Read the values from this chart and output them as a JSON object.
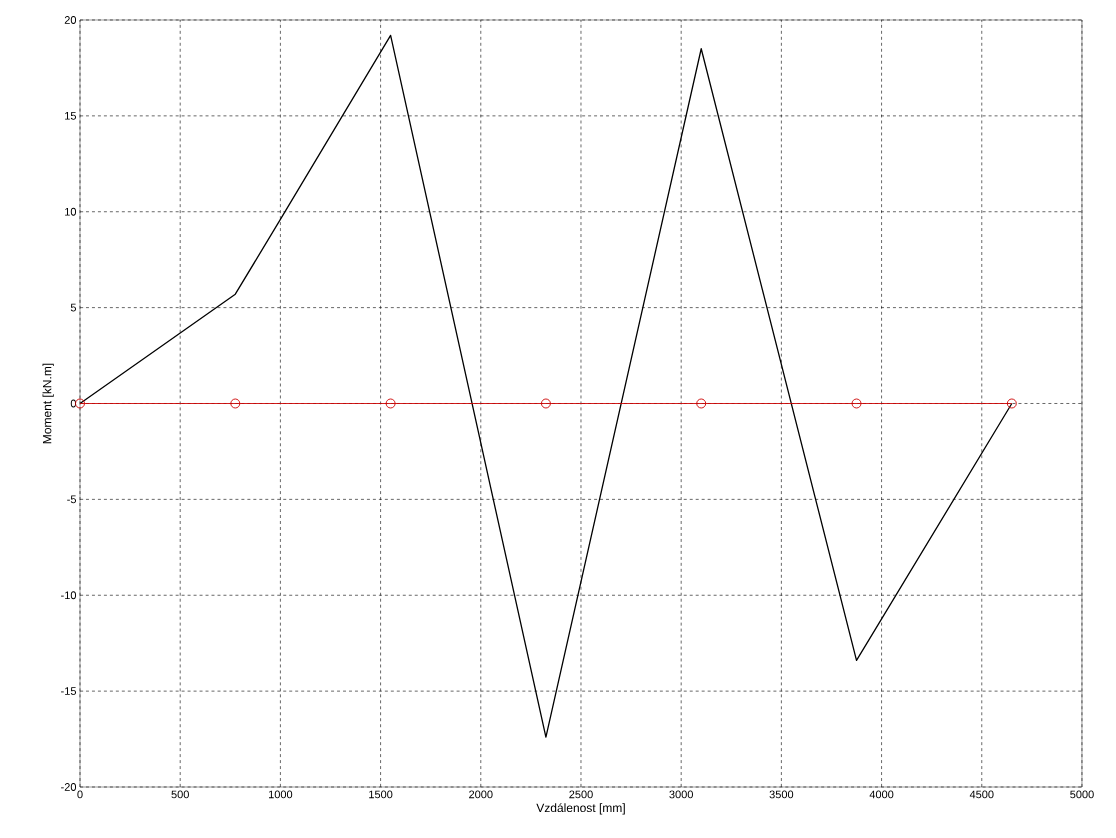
{
  "chart_data": {
    "type": "line",
    "xlabel": "Vzdálenost [mm]",
    "ylabel": "Moment [kN.m]",
    "xlim": [
      0,
      5000
    ],
    "ylim": [
      -20,
      20
    ],
    "xticks": [
      0,
      500,
      1000,
      1500,
      2000,
      2500,
      3000,
      3500,
      4000,
      4500,
      5000
    ],
    "yticks": [
      -20,
      -15,
      -10,
      -5,
      0,
      5,
      10,
      15,
      20
    ],
    "grid": true,
    "line_style": "solid",
    "series": [
      {
        "color": "#000000",
        "marker": "none",
        "x": [
          0,
          775,
          1000,
          1550,
          2325,
          3100,
          3875,
          4650
        ],
        "values": [
          0,
          5.7,
          9.6,
          19.2,
          -17.4,
          18.5,
          -13.4,
          0
        ]
      },
      {
        "color": "#cc0000",
        "marker": "circle",
        "x": [
          0,
          775,
          1550,
          2325,
          3100,
          3875,
          4650
        ],
        "values": [
          0,
          0,
          0,
          0,
          0,
          0,
          0
        ]
      }
    ]
  }
}
